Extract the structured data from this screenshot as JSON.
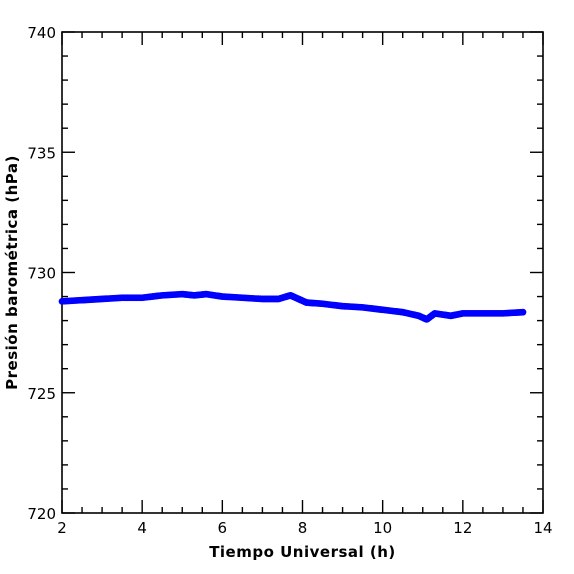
{
  "chart_data": {
    "type": "scatter",
    "title": "",
    "xlabel": "Tiempo Universal (h)",
    "ylabel": "Presión barométrica (hPa)",
    "xlim": [
      2,
      14
    ],
    "ylim": [
      720,
      740
    ],
    "x_ticks": [
      "2",
      "4",
      "6",
      "8",
      "10",
      "12",
      "14"
    ],
    "y_ticks": [
      "720",
      "725",
      "730",
      "735",
      "740"
    ],
    "grid": false,
    "marker_color": "#0000ff",
    "series": [
      {
        "x": [
          2.0,
          2.5,
          3.0,
          3.5,
          4.0,
          4.5,
          5.0,
          5.3,
          5.6,
          6.0,
          6.5,
          7.0,
          7.4,
          7.7,
          7.9,
          8.1,
          8.5,
          9.0,
          9.5,
          10.0,
          10.5,
          10.9,
          11.1,
          11.3,
          11.7,
          12.0,
          12.5,
          13.0,
          13.5
        ],
        "y": [
          728.8,
          728.85,
          728.9,
          728.95,
          728.95,
          729.05,
          729.1,
          729.05,
          729.1,
          729.0,
          728.95,
          728.9,
          728.9,
          729.05,
          728.9,
          728.75,
          728.7,
          728.6,
          728.55,
          728.45,
          728.35,
          728.2,
          728.05,
          728.3,
          728.2,
          728.3,
          728.3,
          728.3,
          728.35
        ]
      }
    ]
  }
}
